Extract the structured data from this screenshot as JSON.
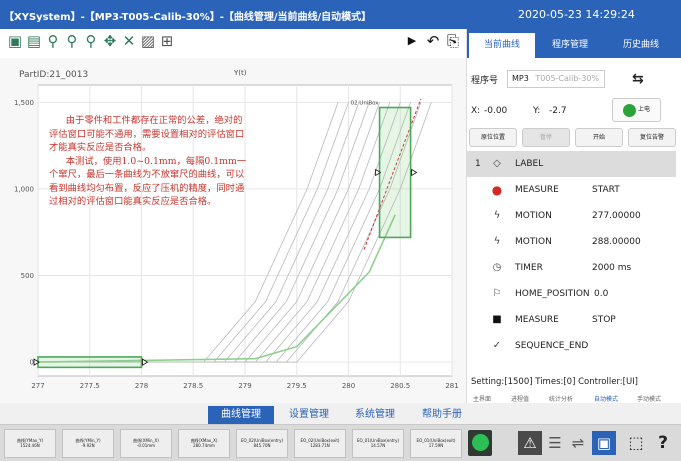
{
  "title_bar": {
    "title": "【XYSystem】-【MP3-T005-Calib-30%】-【曲线管理/当前曲线/自动模式】",
    "datetime": "2020-05-23 14:29:24"
  },
  "toolbar": {
    "icons": [
      "screen-icon",
      "save-icon",
      "zoom-in-icon",
      "zoom-out-icon",
      "magnifier-icon",
      "pan-icon",
      "cross-icon",
      "image-icon",
      "grid-icon",
      "play-icon",
      "undo-icon",
      "export-icon"
    ]
  },
  "plot": {
    "part_id": "PartID:21_0013",
    "y_label": "Y(t)",
    "box_label": "02 UniBox",
    "note_paragraphs": [
      "由于零件和工件都存在正常的公差，绝对的评估窗口可能不通用，需要设置相对的评估窗口才能真实反应是否合格。",
      "本测试，使用1.0~0.1mm，每隔0.1mm一个窜尺，最后一条曲线为不放窜尺的曲线，可以看到曲线均匀布置，反应了压机的精度，同时通过相对的评估窗口能真实反应是否合格。"
    ]
  },
  "chart_data": {
    "type": "line",
    "x_ticks": [
      "277",
      "277.5",
      "278",
      "278.5",
      "279",
      "279.5",
      "280",
      "280.5",
      "281"
    ],
    "y_ticks": [
      "0",
      "500",
      "1,000",
      "1,500"
    ],
    "xlim": [
      277,
      281
    ],
    "ylim": [
      -80,
      1600
    ],
    "grid": true,
    "gray_curves_x0": [
      278.65,
      278.75,
      278.85,
      278.95,
      279.05,
      279.15,
      279.25,
      279.35,
      279.45,
      279.55
    ],
    "green_curve": [
      [
        277,
        0
      ],
      [
        279.1,
        20
      ],
      [
        279.5,
        90
      ],
      [
        280.2,
        520
      ],
      [
        280.45,
        850
      ]
    ],
    "windows": [
      {
        "name": "entry-window",
        "x": [
          277,
          278
        ],
        "y": [
          -30,
          30
        ]
      },
      {
        "name": "unibox-window",
        "x": [
          280.3,
          280.6
        ],
        "y": [
          720,
          1470
        ]
      }
    ]
  },
  "side_panel": {
    "tabs": [
      {
        "label": "当前曲线",
        "active": true
      },
      {
        "label": "程序管理",
        "active": false
      },
      {
        "label": "历史曲线",
        "active": false
      }
    ],
    "program_label": "程序号",
    "program_value": "MP3",
    "program_placeholder": "T005-Calib-30%",
    "x_label": "X:",
    "x_value": "-0.00",
    "y_label": "Y:",
    "y_value": "-2.7",
    "power_label": "上电",
    "buttons": [
      {
        "label": "原位位置",
        "enabled": true
      },
      {
        "label": "暂停",
        "enabled": false
      },
      {
        "label": "开始",
        "enabled": true
      },
      {
        "label": "复位告警",
        "enabled": true
      }
    ],
    "sequence": [
      {
        "num": "1",
        "icon": "tag-icon",
        "kw": "LABEL",
        "val": "",
        "selected": true
      },
      {
        "num": "",
        "icon": "measure-dot-icon",
        "kw": "MEASURE",
        "val": "START",
        "selected": false
      },
      {
        "num": "",
        "icon": "motion-icon",
        "kw": "MOTION",
        "val": "277.00000",
        "selected": false
      },
      {
        "num": "",
        "icon": "motion-icon",
        "kw": "MOTION",
        "val": "288.00000",
        "selected": false
      },
      {
        "num": "",
        "icon": "timer-icon",
        "kw": "TIMER",
        "val": "2000 ms",
        "selected": false
      },
      {
        "num": "",
        "icon": "flag-icon",
        "kw": "HOME_POSITION",
        "val": "0.0",
        "selected": false
      },
      {
        "num": "",
        "icon": "stop-square-icon",
        "kw": "MEASURE",
        "val": "STOP",
        "selected": false
      },
      {
        "num": "",
        "icon": "check-icon",
        "kw": "SEQUENCE_END",
        "val": "",
        "selected": false
      }
    ],
    "status_line": "Setting:[1500] Times:[0] Controller:[UI]",
    "bottom_tabs": [
      {
        "label": "主界面",
        "active": false
      },
      {
        "label": "进程值",
        "active": false
      },
      {
        "label": "统计分析",
        "active": false
      },
      {
        "label": "自动模式",
        "active": true
      },
      {
        "label": "手动模式",
        "active": false
      }
    ]
  },
  "nav": [
    {
      "label": "曲线管理",
      "active": true
    },
    {
      "label": "设置管理",
      "active": false
    },
    {
      "label": "系统管理",
      "active": false
    },
    {
      "label": "帮助手册",
      "active": false
    }
  ],
  "status_cells": [
    {
      "label": "曲线(YMax_Y)",
      "value": "1524.46N"
    },
    {
      "label": "曲线(YMin_Y)",
      "value": "-9.92N"
    },
    {
      "label": "曲线(XMin_X)",
      "value": "-0.01mm"
    },
    {
      "label": "曲线(XMax_X)",
      "value": "280.74mm"
    },
    {
      "label": "EO_02(UniBox(entry)",
      "value": "845.70N"
    },
    {
      "label": "EO_02(UniBox(exit)",
      "value": "1283.71N"
    },
    {
      "label": "EO_01(UniBox(entry)",
      "value": "14.57N"
    },
    {
      "label": "EO_01(UniBox(exit)",
      "value": "17.59N"
    }
  ],
  "status_icons": [
    "green-lamp-icon",
    "warning-icon",
    "network-icon",
    "usb-icon",
    "monitor-icon",
    "select-frame-icon",
    "help-icon"
  ],
  "colors": {
    "primary": "#2b63b8",
    "green": "#4ea85a",
    "red": "#d22a2a",
    "note_text": "#c8352c"
  }
}
